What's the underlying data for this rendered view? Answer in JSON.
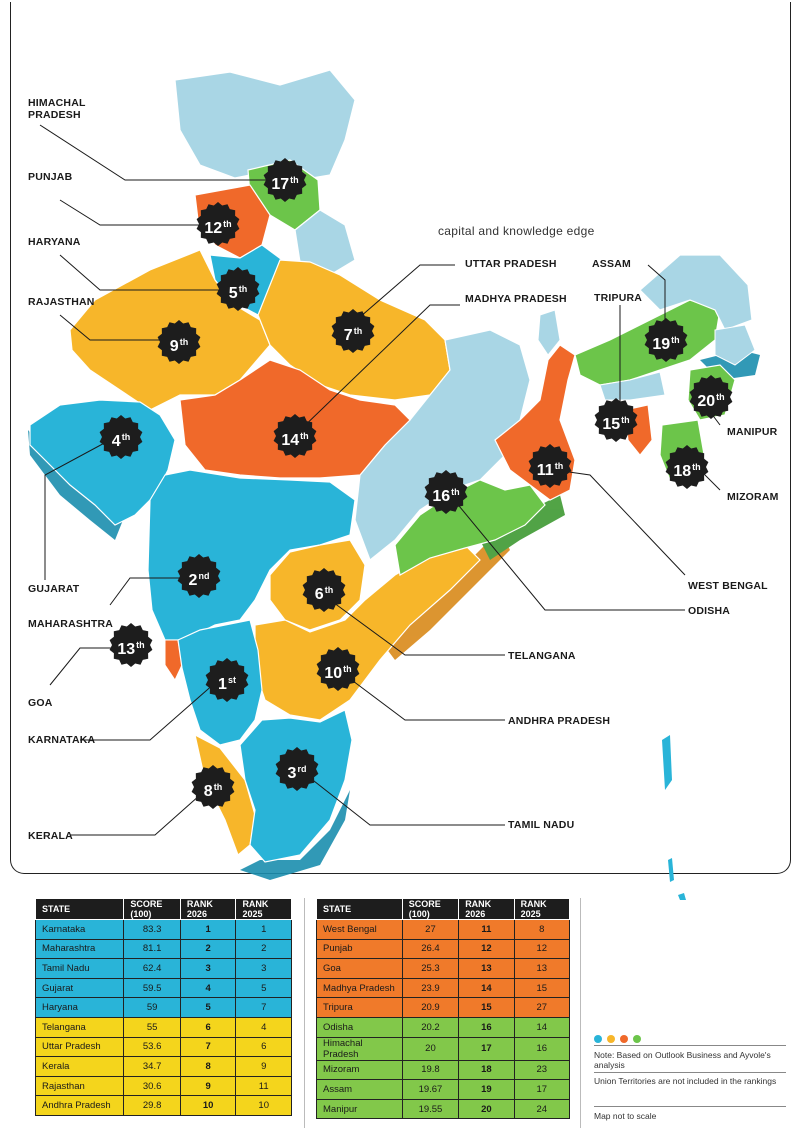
{
  "map": {
    "tagline": "capital and knowledge edge",
    "colors": {
      "blue": "#29b4d8",
      "yellow": "#f7b62a",
      "orange": "#f0692a",
      "green": "#6cc54a",
      "lightblue": "#a9d6e5",
      "badge": "#1d1d1d"
    },
    "state_labels": [
      {
        "id": "hp",
        "text": "HIMACHAL\nPRADESH"
      },
      {
        "id": "pb",
        "text": "PUNJAB"
      },
      {
        "id": "hr",
        "text": "HARYANA"
      },
      {
        "id": "rj",
        "text": "RAJASTHAN"
      },
      {
        "id": "gj",
        "text": "GUJARAT"
      },
      {
        "id": "mh",
        "text": "MAHARASHTRA"
      },
      {
        "id": "ga",
        "text": "GOA"
      },
      {
        "id": "ka",
        "text": "KARNATAKA"
      },
      {
        "id": "kl",
        "text": "KERALA"
      },
      {
        "id": "up",
        "text": "UTTAR PRADESH"
      },
      {
        "id": "mp",
        "text": "MADHYA PRADESH"
      },
      {
        "id": "as",
        "text": "ASSAM"
      },
      {
        "id": "tr",
        "text": "TRIPURA"
      },
      {
        "id": "mn",
        "text": "MANIPUR"
      },
      {
        "id": "mz",
        "text": "MIZORAM"
      },
      {
        "id": "wb",
        "text": "WEST BENGAL"
      },
      {
        "id": "od",
        "text": "ODISHA"
      },
      {
        "id": "tg",
        "text": "TELANGANA"
      },
      {
        "id": "ap",
        "text": "ANDHRA PRADESH"
      },
      {
        "id": "tn",
        "text": "TAMIL NADU"
      }
    ],
    "badges": [
      {
        "id": "ka",
        "num": "1",
        "sfx": "st"
      },
      {
        "id": "mh",
        "num": "2",
        "sfx": "nd"
      },
      {
        "id": "tn",
        "num": "3",
        "sfx": "rd"
      },
      {
        "id": "gj",
        "num": "4",
        "sfx": "th"
      },
      {
        "id": "hr",
        "num": "5",
        "sfx": "th"
      },
      {
        "id": "tg",
        "num": "6",
        "sfx": "th"
      },
      {
        "id": "up",
        "num": "7",
        "sfx": "th"
      },
      {
        "id": "kl",
        "num": "8",
        "sfx": "th"
      },
      {
        "id": "rj",
        "num": "9",
        "sfx": "th"
      },
      {
        "id": "ap",
        "num": "10",
        "sfx": "th"
      },
      {
        "id": "wb",
        "num": "11",
        "sfx": "th"
      },
      {
        "id": "pb",
        "num": "12",
        "sfx": "th"
      },
      {
        "id": "ga",
        "num": "13",
        "sfx": "th"
      },
      {
        "id": "mp",
        "num": "14",
        "sfx": "th"
      },
      {
        "id": "tr",
        "num": "15",
        "sfx": "th"
      },
      {
        "id": "od",
        "num": "16",
        "sfx": "th"
      },
      {
        "id": "hp",
        "num": "17",
        "sfx": "th"
      },
      {
        "id": "mz",
        "num": "18",
        "sfx": "th"
      },
      {
        "id": "as",
        "num": "19",
        "sfx": "th"
      },
      {
        "id": "mn",
        "num": "20",
        "sfx": "th"
      }
    ]
  },
  "table": {
    "headers": [
      "STATE",
      "SCORE (100)",
      "RANK 2026",
      "RANK 2025"
    ],
    "left": [
      {
        "state": "Karnataka",
        "score": "83.3",
        "r26": "1",
        "r25": "1",
        "group": "blue"
      },
      {
        "state": "Maharashtra",
        "score": "81.1",
        "r26": "2",
        "r25": "2",
        "group": "blue"
      },
      {
        "state": "Tamil Nadu",
        "score": "62.4",
        "r26": "3",
        "r25": "3",
        "group": "blue"
      },
      {
        "state": "Gujarat",
        "score": "59.5",
        "r26": "4",
        "r25": "5",
        "group": "blue"
      },
      {
        "state": "Haryana",
        "score": "59",
        "r26": "5",
        "r25": "7",
        "group": "blue"
      },
      {
        "state": "Telangana",
        "score": "55",
        "r26": "6",
        "r25": "4",
        "group": "yellow"
      },
      {
        "state": "Uttar Pradesh",
        "score": "53.6",
        "r26": "7",
        "r25": "6",
        "group": "yellow"
      },
      {
        "state": "Kerala",
        "score": "34.7",
        "r26": "8",
        "r25": "9",
        "group": "yellow"
      },
      {
        "state": "Rajasthan",
        "score": "30.6",
        "r26": "9",
        "r25": "11",
        "group": "yellow"
      },
      {
        "state": "Andhra Pradesh",
        "score": "29.8",
        "r26": "10",
        "r25": "10",
        "group": "yellow"
      }
    ],
    "right": [
      {
        "state": "West Bengal",
        "score": "27",
        "r26": "11",
        "r25": "8",
        "group": "orange"
      },
      {
        "state": "Punjab",
        "score": "26.4",
        "r26": "12",
        "r25": "12",
        "group": "orange"
      },
      {
        "state": "Goa",
        "score": "25.3",
        "r26": "13",
        "r25": "13",
        "group": "orange"
      },
      {
        "state": "Madhya Pradesh",
        "score": "23.9",
        "r26": "14",
        "r25": "15",
        "group": "orange"
      },
      {
        "state": "Tripura",
        "score": "20.9",
        "r26": "15",
        "r25": "27",
        "group": "orange"
      },
      {
        "state": "Odisha",
        "score": "20.2",
        "r26": "16",
        "r25": "14",
        "group": "green"
      },
      {
        "state": "Himachal Pradesh",
        "score": "20",
        "r26": "17",
        "r25": "16",
        "group": "green"
      },
      {
        "state": "Mizoram",
        "score": "19.8",
        "r26": "18",
        "r25": "23",
        "group": "green"
      },
      {
        "state": "Assam",
        "score": "19.67",
        "r26": "19",
        "r25": "17",
        "group": "green"
      },
      {
        "state": "Manipur",
        "score": "19.55",
        "r26": "20",
        "r25": "24",
        "group": "green"
      }
    ]
  },
  "notes": {
    "note1": "Note: Based on Outlook Business and Ayvole's analysis",
    "note2": "Union Territories are not included in the rankings",
    "note3": "Map not to scale"
  }
}
